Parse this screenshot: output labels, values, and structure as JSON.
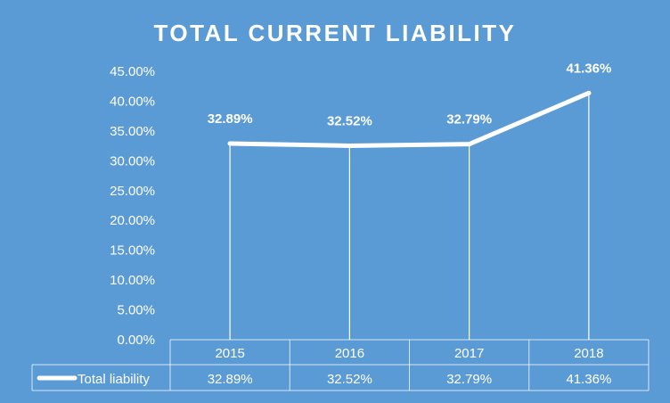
{
  "chart_data": {
    "type": "line",
    "title": "TOTAL CURRENT LIABILITY",
    "categories": [
      "2015",
      "2016",
      "2017",
      "2018"
    ],
    "series": [
      {
        "name": "Total liability",
        "values": [
          32.89,
          32.52,
          32.79,
          41.36
        ]
      }
    ],
    "data_labels": [
      "32.89%",
      "32.52%",
      "32.79%",
      "41.36%"
    ],
    "table_values": [
      "32.89%",
      "32.52%",
      "32.79%",
      "41.36%"
    ],
    "y_ticks": [
      "0.00%",
      "5.00%",
      "10.00%",
      "15.00%",
      "20.00%",
      "25.00%",
      "30.00%",
      "35.00%",
      "40.00%",
      "45.00%"
    ],
    "ylim": [
      0,
      45
    ],
    "legend": "data-table",
    "grid": false,
    "drop_lines": true,
    "colors": {
      "background": "#5b9bd5",
      "line": "#ffffff",
      "text": "#ffffff"
    }
  }
}
